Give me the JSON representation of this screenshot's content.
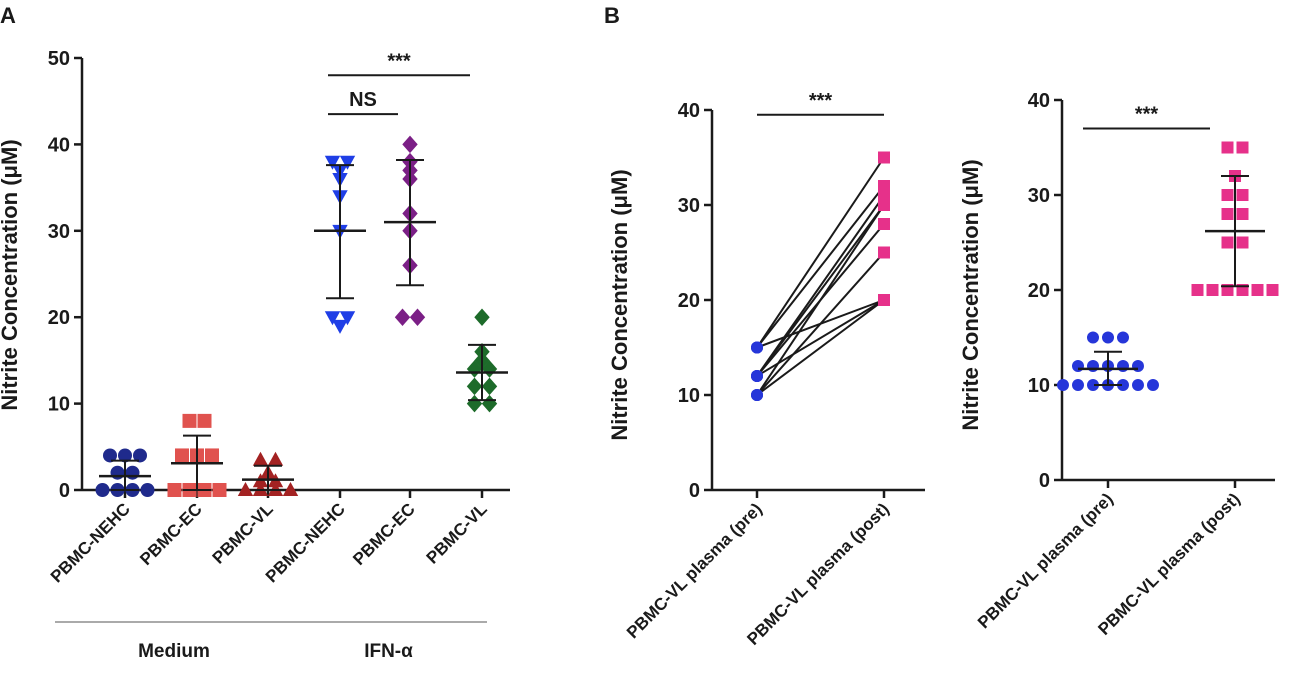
{
  "panels": {
    "a": "A",
    "b": "B"
  },
  "colors": {
    "navy": "#1f2a8c",
    "red": "#e0524e",
    "darkred": "#a32222",
    "blue": "#1f3ee6",
    "purple": "#7b1f86",
    "green": "#1d6b2a",
    "pink": "#e6318a",
    "dot_blue": "#2636d9",
    "axis": "#1a1a1a"
  },
  "chart_data": [
    {
      "type": "scatter",
      "title": "A",
      "ylabel": "Nitrite Concentration (μM)",
      "ylim": [
        0,
        50
      ],
      "yticks": [
        0,
        10,
        20,
        30,
        40,
        50
      ],
      "groups": [
        {
          "label": "Medium",
          "members": [
            0,
            1,
            2
          ]
        },
        {
          "label": "IFN-α",
          "members": [
            3,
            4,
            5
          ]
        }
      ],
      "significance": [
        {
          "from": 3,
          "to": 5,
          "y": 48,
          "label": "***"
        },
        {
          "from": 3,
          "to": 4,
          "y": 43.5,
          "label": "NS"
        }
      ],
      "series": [
        {
          "name": "PBMC-NEHC",
          "marker": "circle",
          "color": "#1f2a8c",
          "values": [
            4,
            4,
            4,
            2,
            2,
            0,
            0,
            0,
            0
          ],
          "mean": 1.6,
          "sd_low": 0,
          "sd_high": 3.4
        },
        {
          "name": "PBMC-EC",
          "marker": "square",
          "color": "#e0524e",
          "values": [
            8,
            8,
            4,
            4,
            4,
            0,
            0,
            0,
            0
          ],
          "mean": 3.1,
          "sd_low": 0,
          "sd_high": 6.3
        },
        {
          "name": "PBMC-VL",
          "marker": "triangle-up",
          "color": "#a32222",
          "values": [
            3.5,
            3.5,
            2,
            1,
            1,
            0,
            0,
            0,
            0
          ],
          "mean": 1.2,
          "sd_low": 0,
          "sd_high": 2.8
        },
        {
          "name": "PBMC-NEHC",
          "marker": "triangle-down",
          "color": "#1f3ee6",
          "values": [
            38,
            38,
            37,
            36,
            34,
            30,
            20,
            20,
            19
          ],
          "mean": 30,
          "sd_low": 22.2,
          "sd_high": 37.6
        },
        {
          "name": "PBMC-EC",
          "marker": "diamond",
          "color": "#7b1f86",
          "values": [
            40,
            38,
            37,
            36,
            32,
            30,
            26,
            20,
            20
          ],
          "mean": 31,
          "sd_low": 23.7,
          "sd_high": 38.2
        },
        {
          "name": "PBMC-VL",
          "marker": "diamond",
          "color": "#1d6b2a",
          "values": [
            20,
            16,
            15,
            14,
            14,
            12,
            12,
            10,
            10
          ],
          "mean": 13.6,
          "sd_low": 10.4,
          "sd_high": 16.8
        }
      ]
    },
    {
      "type": "line",
      "title": "B",
      "ylabel": "Nitrite Concentration (μM)",
      "ylim": [
        0,
        40
      ],
      "yticks": [
        0,
        10,
        20,
        30,
        40
      ],
      "categories": [
        "PBMC-VL plasma (pre)",
        "PBMC-VL plasma (post)"
      ],
      "significance": [
        {
          "from": 0,
          "to": 1,
          "y": 39.5,
          "label": "***"
        }
      ],
      "pairs": [
        [
          15,
          35
        ],
        [
          15,
          32
        ],
        [
          12,
          31
        ],
        [
          12,
          30
        ],
        [
          12,
          28
        ],
        [
          12,
          20
        ],
        [
          10,
          30
        ],
        [
          10,
          25
        ],
        [
          10,
          20
        ],
        [
          15,
          20
        ]
      ],
      "colors": [
        "#2636d9",
        "#e6318a"
      ]
    },
    {
      "type": "scatter",
      "title": "",
      "ylabel": "Nitrite Concentration (μM)",
      "ylim": [
        0,
        40
      ],
      "yticks": [
        0,
        10,
        20,
        30,
        40
      ],
      "significance": [
        {
          "from": 0,
          "to": 1,
          "y": 37,
          "label": "***"
        }
      ],
      "series": [
        {
          "name": "PBMC-VL plasma (pre)",
          "marker": "circle",
          "color": "#2636d9",
          "values": [
            15,
            15,
            15,
            12,
            12,
            12,
            12,
            12,
            10,
            10,
            10,
            10,
            10,
            10,
            10
          ],
          "mean": 11.7,
          "sd_low": 10,
          "sd_high": 13.5
        },
        {
          "name": "PBMC-VL plasma (post)",
          "marker": "square",
          "color": "#e6318a",
          "values": [
            35,
            35,
            32,
            30,
            30,
            28,
            28,
            25,
            25,
            20,
            20,
            20,
            20,
            20,
            20
          ],
          "mean": 26.2,
          "sd_low": 20.4,
          "sd_high": 32
        }
      ]
    }
  ]
}
